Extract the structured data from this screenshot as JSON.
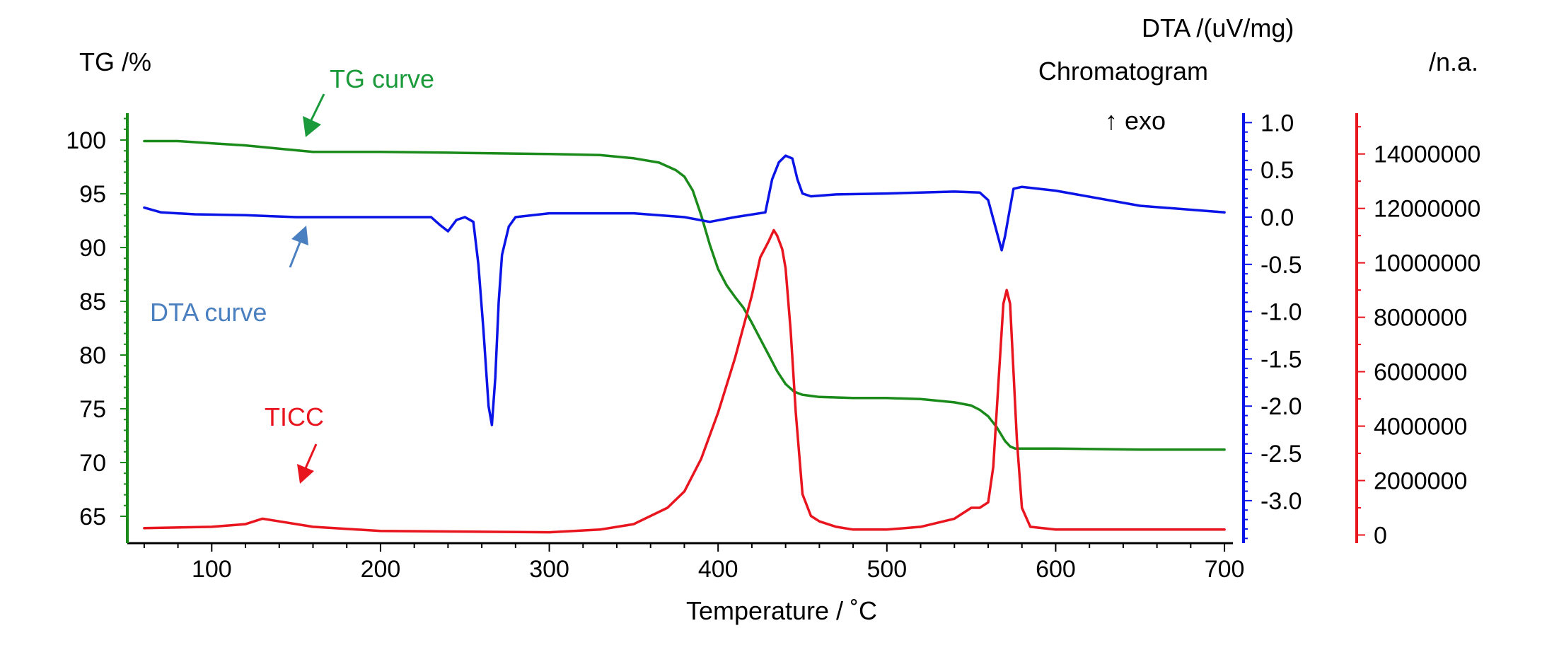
{
  "chart_data": {
    "type": "line",
    "xlabel": "Temperature / ˚C",
    "xlim": [
      50,
      705
    ],
    "xticks": [
      100,
      200,
      300,
      400,
      500,
      600,
      700
    ],
    "axes": {
      "tg": {
        "title": "TG /%",
        "color": "#1a8a1a",
        "ylim": [
          62.5,
          102.5
        ],
        "ticks": [
          65,
          70,
          75,
          80,
          85,
          90,
          95,
          100
        ]
      },
      "dta": {
        "title": "DTA /(uV/mg)",
        "exo_label": "↑ exo",
        "color": "#0a14e6",
        "ylim": [
          -3.45,
          1.1
        ],
        "ticks": [
          -3.0,
          -2.5,
          -2.0,
          -1.5,
          -1.0,
          -0.5,
          0.0,
          0.5,
          1.0
        ],
        "tick_labels": [
          "-3.0",
          "-2.5",
          "-2.0",
          "-1.5",
          "-1.0",
          "-0.5",
          "0.0",
          "0.5",
          "1.0"
        ]
      },
      "chromatogram": {
        "title": "Chromatogram",
        "unit": "/n.a.",
        "color": "#e8141e",
        "ylim": [
          -300000,
          15500000
        ],
        "ticks": [
          0,
          2000000,
          4000000,
          6000000,
          8000000,
          10000000,
          12000000,
          14000000
        ],
        "tick_labels": [
          "0",
          "2000000",
          "4000000",
          "6000000",
          "8000000",
          "10000000",
          "12000000",
          "14000000"
        ]
      }
    },
    "series": [
      {
        "name": "TG curve",
        "axis": "tg",
        "color": "#1a8a1a",
        "x": [
          60,
          80,
          100,
          120,
          140,
          160,
          200,
          250,
          300,
          330,
          350,
          365,
          375,
          380,
          385,
          390,
          395,
          400,
          405,
          410,
          415,
          420,
          425,
          430,
          435,
          440,
          445,
          450,
          460,
          480,
          500,
          520,
          540,
          550,
          555,
          560,
          565,
          570,
          573,
          576,
          580,
          600,
          650,
          700
        ],
        "y": [
          99.9,
          99.9,
          99.7,
          99.5,
          99.2,
          98.9,
          98.9,
          98.8,
          98.7,
          98.6,
          98.3,
          97.9,
          97.2,
          96.6,
          95.3,
          93.0,
          90.3,
          88.0,
          86.5,
          85.4,
          84.4,
          83.0,
          81.5,
          80.0,
          78.5,
          77.3,
          76.6,
          76.3,
          76.1,
          76.0,
          76.0,
          75.9,
          75.6,
          75.3,
          74.9,
          74.3,
          73.3,
          72.0,
          71.5,
          71.3,
          71.3,
          71.3,
          71.2,
          71.2
        ]
      },
      {
        "name": "DTA curve",
        "axis": "dta",
        "color": "#0a14e6",
        "x": [
          60,
          70,
          90,
          120,
          150,
          200,
          230,
          235,
          240,
          245,
          250,
          255,
          258,
          261,
          264,
          266,
          268,
          270,
          272,
          276,
          280,
          300,
          350,
          380,
          395,
          410,
          428,
          432,
          436,
          440,
          444,
          447,
          450,
          455,
          470,
          500,
          540,
          555,
          560,
          565,
          568,
          570,
          572,
          575,
          580,
          600,
          650,
          700
        ],
        "y": [
          0.1,
          0.05,
          0.03,
          0.02,
          0.0,
          0.0,
          0.0,
          -0.08,
          -0.15,
          -0.03,
          0.0,
          -0.05,
          -0.5,
          -1.2,
          -2.0,
          -2.2,
          -1.7,
          -0.9,
          -0.4,
          -0.1,
          0.0,
          0.04,
          0.04,
          0.0,
          -0.05,
          0.0,
          0.05,
          0.4,
          0.58,
          0.65,
          0.62,
          0.4,
          0.25,
          0.22,
          0.24,
          0.25,
          0.27,
          0.26,
          0.18,
          -0.15,
          -0.35,
          -0.2,
          0.0,
          0.3,
          0.32,
          0.28,
          0.12,
          0.05
        ]
      },
      {
        "name": "TICC",
        "axis": "chromatogram",
        "color": "#e8141e",
        "x": [
          60,
          100,
          120,
          130,
          140,
          160,
          200,
          300,
          330,
          350,
          370,
          380,
          390,
          400,
          410,
          420,
          425,
          430,
          433,
          435,
          438,
          440,
          443,
          446,
          450,
          455,
          460,
          470,
          480,
          490,
          500,
          520,
          540,
          550,
          555,
          560,
          563,
          566,
          569,
          571,
          573,
          575,
          577,
          580,
          585,
          600,
          650,
          700
        ],
        "y": [
          250000,
          300000,
          400000,
          600000,
          500000,
          300000,
          150000,
          100000,
          200000,
          400000,
          1000000,
          1600000,
          2800000,
          4500000,
          6500000,
          8800000,
          10200000,
          10800000,
          11200000,
          11000000,
          10500000,
          9800000,
          7500000,
          4500000,
          1500000,
          700000,
          500000,
          300000,
          200000,
          200000,
          200000,
          300000,
          600000,
          1000000,
          1000000,
          1200000,
          2500000,
          5500000,
          8500000,
          9000000,
          8500000,
          6000000,
          3500000,
          1000000,
          300000,
          200000,
          200000,
          200000
        ]
      }
    ],
    "annotations": [
      {
        "text": "TG curve",
        "color": "#1a9a3a"
      },
      {
        "text": "DTA curve",
        "color": "#4a7fc0"
      },
      {
        "text": "TICC",
        "color": "#e8141e"
      }
    ]
  }
}
